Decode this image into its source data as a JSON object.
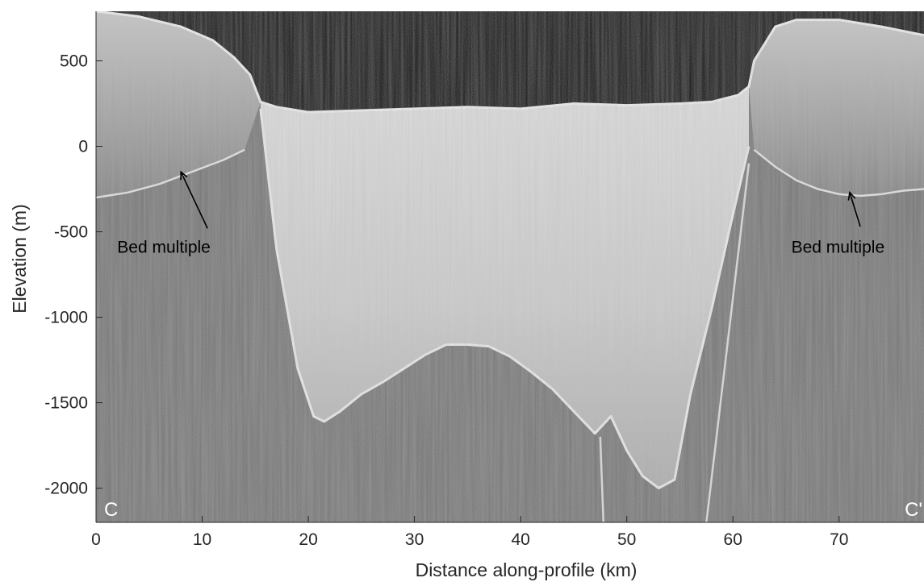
{
  "chart_data": {
    "type": "radargram",
    "xlabel": "Distance along-profile (km)",
    "ylabel": "Elevation (m)",
    "xlim": [
      0,
      78
    ],
    "ylim": [
      -2200,
      790
    ],
    "x_ticks": [
      0,
      10,
      20,
      30,
      40,
      50,
      60,
      70
    ],
    "y_ticks": [
      500,
      0,
      -500,
      -1000,
      -1500,
      -2000
    ],
    "grid": false,
    "colors": {
      "sky": "#000000",
      "ice": "#d4d4d4",
      "bedrock": "#6b6b6b",
      "reflector": "#f2f2f2"
    },
    "surface": {
      "name": "",
      "x": [
        0,
        4,
        8,
        11,
        13,
        14.5,
        15.5,
        17,
        20,
        25,
        30,
        35,
        40,
        45,
        50,
        55,
        58,
        60.5,
        61.5,
        62,
        64,
        66,
        70,
        74,
        78
      ],
      "y": [
        790,
        760,
        700,
        620,
        520,
        420,
        260,
        230,
        200,
        210,
        220,
        230,
        220,
        250,
        240,
        250,
        260,
        300,
        350,
        500,
        700,
        740,
        740,
        700,
        650
      ]
    },
    "bed": {
      "name": "",
      "x": [
        15.5,
        17,
        19,
        20.5,
        21.5,
        23,
        25,
        27,
        29,
        31,
        33,
        35,
        37,
        39,
        41,
        43,
        45,
        47,
        48.5,
        50,
        51.5,
        53,
        54.5,
        56,
        58,
        60,
        61.5
      ],
      "y": [
        220,
        -600,
        -1300,
        -1580,
        -1610,
        -1550,
        -1450,
        -1380,
        -1300,
        -1220,
        -1160,
        -1160,
        -1170,
        -1230,
        -1320,
        -1420,
        -1550,
        -1680,
        -1580,
        -1780,
        -1930,
        -2000,
        -1950,
        -1450,
        -950,
        -400,
        0
      ]
    },
    "bed_multiple_left": {
      "x": [
        0,
        3,
        6,
        9,
        12,
        14
      ],
      "y": [
        -300,
        -270,
        -220,
        -150,
        -80,
        -20
      ]
    },
    "bed_multiple_right": {
      "x": [
        62,
        64,
        66,
        68,
        70,
        72,
        74,
        76,
        78
      ],
      "y": [
        -20,
        -120,
        -200,
        -250,
        -280,
        -290,
        -280,
        -260,
        -250
      ]
    },
    "annotations": [
      {
        "text": "Bed multiple",
        "x": 2,
        "y": -590,
        "arrow_from": [
          10.5,
          -480
        ],
        "arrow_to": [
          8,
          -150
        ]
      },
      {
        "text": "Bed multiple",
        "x": 65.5,
        "y": -590,
        "arrow_from": [
          72,
          -470
        ],
        "arrow_to": [
          71,
          -270
        ]
      }
    ],
    "profile_labels": {
      "start": "C",
      "end": "C'"
    }
  }
}
